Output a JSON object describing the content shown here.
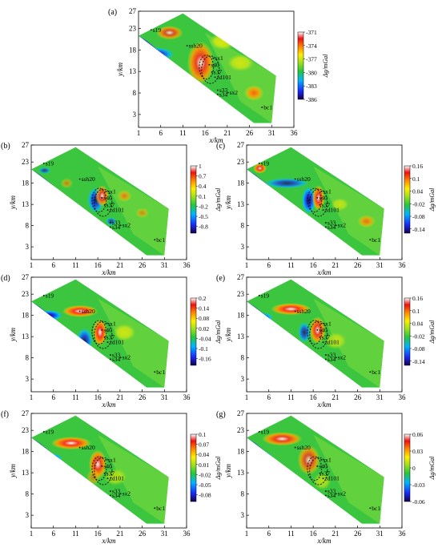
{
  "chart_data": [
    {
      "panel": "(a)",
      "type": "heatmap",
      "xlabel": "x/km",
      "ylabel": "y/km",
      "cbar_label": "Δg/mGal",
      "xticks": [
        "1",
        "6",
        "11",
        "16",
        "21",
        "26",
        "31",
        "36"
      ],
      "yticks": [
        "3",
        "8",
        "13",
        "18",
        "23",
        "27"
      ],
      "xlim": [
        1,
        36
      ],
      "ylim": [
        0,
        27
      ],
      "cbar_ticks": [
        "-371",
        "-374",
        "-377",
        "-380",
        "-383",
        "-386"
      ],
      "cbar_range": [
        -386,
        -371
      ],
      "annotations": [
        "s19",
        "ssh20",
        "sx1",
        "s40",
        "s37",
        "zd101",
        "s33",
        "s34",
        "sx2",
        "bc1"
      ]
    },
    {
      "panel": "(b)",
      "type": "heatmap",
      "xlabel": "x/km",
      "ylabel": "y/km",
      "cbar_label": "Δg/mGal",
      "xticks": [
        "1",
        "6",
        "11",
        "16",
        "21",
        "26",
        "31",
        "36"
      ],
      "yticks": [
        "3",
        "8",
        "13",
        "18",
        "23",
        "27"
      ],
      "xlim": [
        1,
        36
      ],
      "ylim": [
        0,
        27
      ],
      "cbar_ticks": [
        "1",
        "0.7",
        "0.4",
        "0.1",
        "-0.2",
        "-0.5",
        "-0.8"
      ],
      "cbar_range": [
        -1,
        1
      ],
      "annotations": [
        "s19",
        "ssh20",
        "sx1",
        "s40",
        "s37",
        "zd101",
        "s33",
        "s34",
        "sx2",
        "bc1"
      ]
    },
    {
      "panel": "(c)",
      "type": "heatmap",
      "xlabel": "x/km",
      "ylabel": "y/km",
      "cbar_label": "Δg/mGal",
      "xticks": [
        "1",
        "6",
        "11",
        "16",
        "21",
        "26",
        "31",
        "36"
      ],
      "yticks": [
        "3",
        "8",
        "13",
        "18",
        "23",
        "27"
      ],
      "xlim": [
        1,
        36
      ],
      "ylim": [
        0,
        27
      ],
      "cbar_ticks": [
        "0.16",
        "0.1",
        "0.04",
        "-0.02",
        "-0.08",
        "-0.14"
      ],
      "cbar_range": [
        -0.16,
        0.16
      ],
      "annotations": [
        "s19",
        "ssh20",
        "sx1",
        "s40",
        "s37",
        "zd101",
        "s33",
        "s34",
        "sx2",
        "bc1"
      ]
    },
    {
      "panel": "(d)",
      "type": "heatmap",
      "xlabel": "x/km",
      "ylabel": "y/km",
      "cbar_label": "Δg/mGal",
      "xticks": [
        "1",
        "6",
        "11",
        "16",
        "21",
        "26",
        "31",
        "36"
      ],
      "yticks": [
        "3",
        "8",
        "13",
        "18",
        "23",
        "27"
      ],
      "xlim": [
        1,
        36
      ],
      "ylim": [
        0,
        27
      ],
      "cbar_ticks": [
        "0.2",
        "0.14",
        "0.08",
        "0.02",
        "-0.04",
        "-0.1",
        "-0.16"
      ],
      "cbar_range": [
        -0.2,
        0.2
      ],
      "annotations": [
        "s19",
        "ssh20",
        "sx1",
        "s40",
        "s37",
        "zd101",
        "s33",
        "s34",
        "sx2",
        "bc1"
      ]
    },
    {
      "panel": "(e)",
      "type": "heatmap",
      "xlabel": "x/km",
      "ylabel": "y/km",
      "cbar_label": "Δg/mGal",
      "xticks": [
        "1",
        "6",
        "11",
        "16",
        "21",
        "26",
        "31",
        "36"
      ],
      "yticks": [
        "3",
        "8",
        "13",
        "18",
        "23",
        "27"
      ],
      "xlim": [
        1,
        36
      ],
      "ylim": [
        0,
        27
      ],
      "cbar_ticks": [
        "0.16",
        "0.1",
        "0.04",
        "-0.02",
        "-0.08",
        "-0.14"
      ],
      "cbar_range": [
        -0.16,
        0.16
      ],
      "annotations": [
        "s19",
        "ssh20",
        "sx1",
        "s40",
        "s37",
        "zd101",
        "s33",
        "s34",
        "sx2",
        "bc1"
      ]
    },
    {
      "panel": "(f)",
      "type": "heatmap",
      "xlabel": "x/km",
      "ylabel": "y/km",
      "cbar_label": "Δg/mGal",
      "xticks": [
        "1",
        "6",
        "11",
        "16",
        "21",
        "26",
        "31",
        "36"
      ],
      "yticks": [
        "3",
        "8",
        "13",
        "18",
        "23",
        "27"
      ],
      "xlim": [
        1,
        36
      ],
      "ylim": [
        0,
        27
      ],
      "cbar_ticks": [
        "0.1",
        "0.07",
        "0.04",
        "0.01",
        "-0.02",
        "-0.05",
        "-0.08"
      ],
      "cbar_range": [
        -0.1,
        0.1
      ],
      "annotations": [
        "s19",
        "ssh20",
        "sx1",
        "s40",
        "s37",
        "zd101",
        "s33",
        "s34",
        "sx2",
        "bc1"
      ]
    },
    {
      "panel": "(g)",
      "type": "heatmap",
      "xlabel": "x/km",
      "ylabel": "y/km",
      "cbar_label": "Δg/mGal",
      "xticks": [
        "1",
        "6",
        "11",
        "16",
        "21",
        "26",
        "31",
        "36"
      ],
      "yticks": [
        "3",
        "8",
        "13",
        "18",
        "23",
        "27"
      ],
      "xlim": [
        1,
        36
      ],
      "ylim": [
        0,
        27
      ],
      "cbar_ticks": [
        "0.06",
        "0.03",
        "0",
        "-0.03",
        "-0.06"
      ],
      "cbar_range": [
        -0.06,
        0.06
      ],
      "annotations": [
        "s19",
        "ssh20",
        "sx1",
        "s40",
        "s37",
        "zd101",
        "s33",
        "s34",
        "sx2",
        "bc1"
      ]
    }
  ]
}
